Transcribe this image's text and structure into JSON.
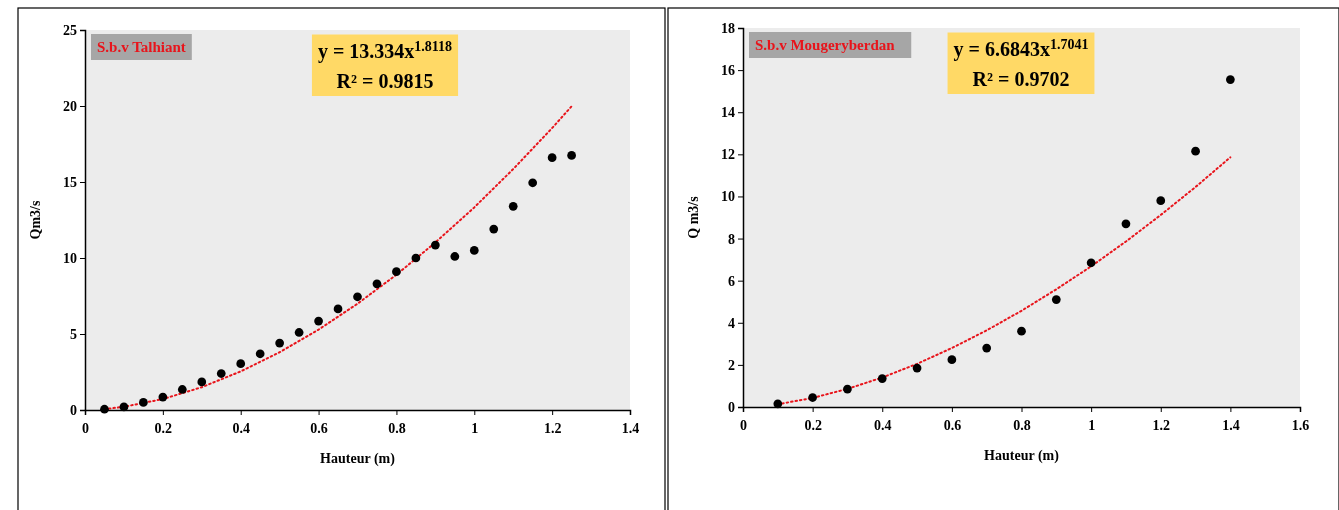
{
  "chart_data": [
    {
      "type": "scatter",
      "xlabel": "Hauteur (m)",
      "ylabel": "Qm3/s",
      "xlim": [
        0,
        1.4
      ],
      "xticks": [
        0,
        0.2,
        0.4,
        0.6,
        0.8,
        1,
        1.2,
        1.4
      ],
      "ylim": [
        0,
        25
      ],
      "yticks": [
        0,
        5,
        10,
        15,
        20,
        25
      ],
      "grid": false,
      "annotations": [
        "S.b.v Talhiant",
        "y = 13.334x$^{1.8118}$",
        "R² = 0.9815"
      ],
      "series": [
        {
          "marker": "circle",
          "color": "#000000",
          "x": [
            0.05,
            0.1,
            0.15,
            0.2,
            0.25,
            0.3,
            0.35,
            0.4,
            0.45,
            0.5,
            0.55,
            0.6,
            0.65,
            0.7,
            0.75,
            0.8,
            0.85,
            0.9,
            0.95,
            1.0,
            1.05,
            1.1,
            1.15,
            1.2,
            1.25
          ],
          "values": [
            0.05,
            0.2,
            0.5,
            0.85,
            1.35,
            1.85,
            2.4,
            3.05,
            3.7,
            4.4,
            5.1,
            5.85,
            6.65,
            7.45,
            8.3,
            9.1,
            10.0,
            10.85,
            10.1,
            10.5,
            11.9,
            13.4,
            14.95,
            16.6,
            16.75
          ]
        },
        {
          "type": "line",
          "marker": "none",
          "color": "#e8141b",
          "line_style": "dotted",
          "x": [
            0.05,
            0.1,
            0.2,
            0.3,
            0.4,
            0.5,
            0.6,
            0.7,
            0.8,
            0.9,
            1.0,
            1.1,
            1.2,
            1.25
          ],
          "values": [
            0.06,
            0.21,
            0.72,
            1.5,
            2.54,
            3.8,
            5.29,
            6.99,
            8.9,
            11.02,
            13.33,
            15.85,
            18.55,
            19.98
          ]
        }
      ]
    },
    {
      "type": "scatter",
      "xlabel": "Hauteur (m)",
      "ylabel": "Q m3/s",
      "xlim": [
        0,
        1.6
      ],
      "xticks": [
        0,
        0.2,
        0.4,
        0.6,
        0.8,
        1,
        1.2,
        1.4,
        1.6
      ],
      "ylim": [
        0,
        18
      ],
      "yticks": [
        0,
        2,
        4,
        6,
        8,
        10,
        12,
        14,
        16,
        18
      ],
      "grid": false,
      "annotations": [
        "S.b.v Mougeryberdan",
        "y = 6.6843x$^{1.7041}$",
        "R² = 0.9702"
      ],
      "series": [
        {
          "marker": "circle",
          "color": "#000000",
          "x": [
            0.1,
            0.2,
            0.3,
            0.4,
            0.5,
            0.6,
            0.7,
            0.8,
            0.9,
            1.0,
            1.1,
            1.2,
            1.3,
            1.4
          ],
          "values": [
            0.15,
            0.45,
            0.85,
            1.35,
            1.85,
            2.25,
            2.8,
            3.6,
            5.1,
            6.85,
            8.7,
            9.8,
            12.15,
            15.55
          ]
        },
        {
          "type": "line",
          "marker": "none",
          "color": "#e8141b",
          "line_style": "dotted",
          "x": [
            0.1,
            0.2,
            0.3,
            0.4,
            0.5,
            0.6,
            0.7,
            0.8,
            0.9,
            1.0,
            1.1,
            1.2,
            1.3,
            1.4
          ],
          "values": [
            0.13,
            0.43,
            0.86,
            1.4,
            2.05,
            2.8,
            3.64,
            4.57,
            5.59,
            6.68,
            7.86,
            9.12,
            10.45,
            11.86
          ]
        }
      ]
    }
  ]
}
